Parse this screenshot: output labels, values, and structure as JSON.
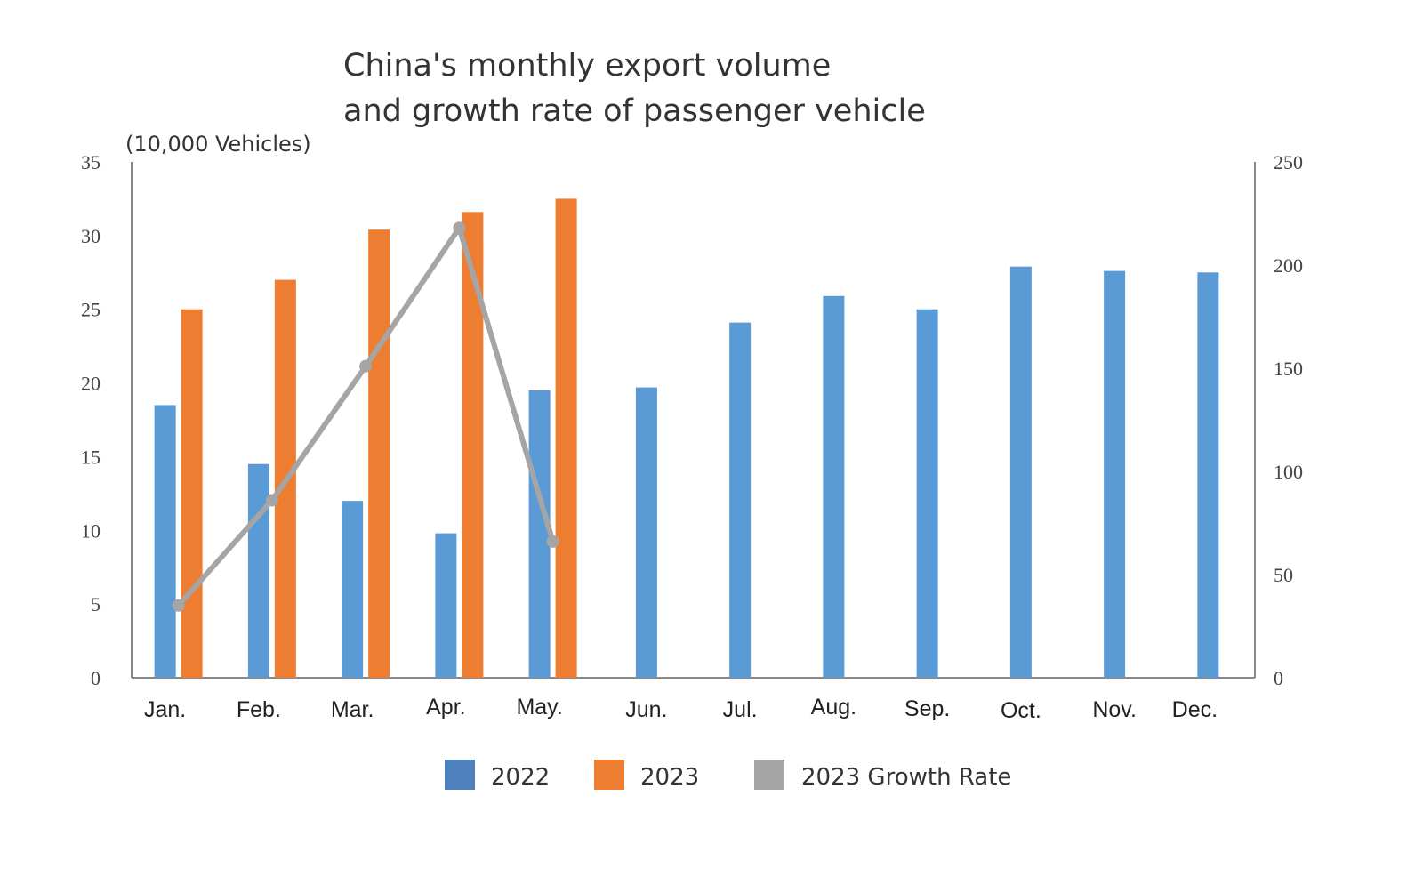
{
  "chart_data": {
    "type": "bar",
    "title_line1": "China's monthly export volume",
    "title_line2": "and growth rate of passenger vehicle",
    "ylabel": "(10,000 Vehicles)",
    "ylim": [
      0,
      35
    ],
    "yticks": [
      0,
      5,
      10,
      15,
      20,
      25,
      30,
      35
    ],
    "y2lim": [
      0,
      250
    ],
    "y2ticks": [
      0,
      50,
      100,
      150,
      200,
      250
    ],
    "grid": false,
    "legend_position": "bottom",
    "categories": [
      "Jan.",
      "Feb.",
      "Mar.",
      "Apr.",
      "May.",
      "Jun.",
      "Jul.",
      "Aug.",
      "Sep.",
      "Oct.",
      "Nov.",
      "Dec."
    ],
    "series": [
      {
        "name": "2022",
        "type": "bar",
        "axis": "left",
        "color": "#5b9bd5",
        "values": [
          18.5,
          14.5,
          12.0,
          9.8,
          19.5,
          19.7,
          24.1,
          25.9,
          25.0,
          27.9,
          27.6,
          27.5
        ]
      },
      {
        "name": "2023",
        "type": "bar",
        "axis": "left",
        "color": "#ed7d31",
        "values": [
          25.0,
          27.0,
          30.4,
          31.6,
          32.5,
          null,
          null,
          null,
          null,
          null,
          null,
          null
        ]
      },
      {
        "name": "2023 Growth Rate",
        "type": "line",
        "axis": "right",
        "color": "#a5a5a5",
        "values": [
          35,
          86,
          151,
          218,
          66,
          null,
          null,
          null,
          null,
          null,
          null,
          null
        ]
      }
    ],
    "legend_swatch_colors": [
      "#4e81bd",
      "#ed7d31",
      "#a5a5a5"
    ]
  }
}
